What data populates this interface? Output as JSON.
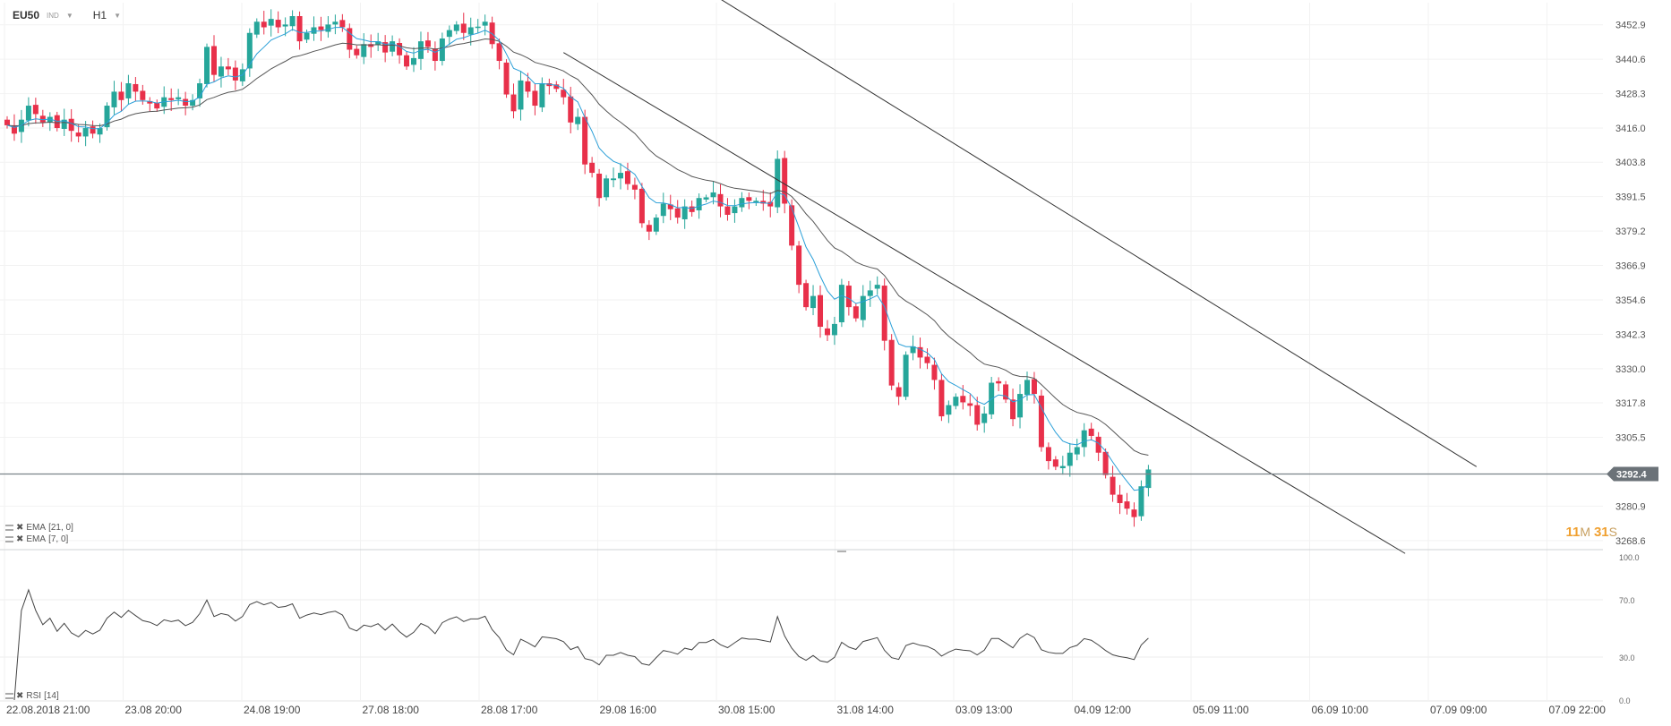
{
  "header": {
    "symbol": "EU50",
    "symbol_sub": "IND",
    "timeframe": "H1"
  },
  "legend": [
    {
      "label": "EMA",
      "params": "[21, 0]"
    },
    {
      "label": "EMA",
      "params": "[7, 0]"
    }
  ],
  "rsi_legend": {
    "label": "RSI",
    "params": "[14]"
  },
  "timer": {
    "minutes": "11",
    "m_unit": "M",
    "seconds": "31",
    "s_unit": "S"
  },
  "colors": {
    "bull": "#26a69a",
    "bear": "#e8304a",
    "ema7": "#2a9fd8",
    "ema21": "#555555",
    "price_tag": "#6b7278"
  },
  "chart_data": {
    "type": "candlestick",
    "price_axis": {
      "ticks": [
        "3452.9",
        "3440.6",
        "3428.3",
        "3416.0",
        "3403.8",
        "3391.5",
        "3379.2",
        "3366.9",
        "3354.6",
        "3342.3",
        "3330.0",
        "3317.8",
        "3305.5",
        "3280.9",
        "3268.6"
      ],
      "ylim": [
        3266,
        3456
      ]
    },
    "current_price": "3292.4",
    "time_axis": [
      "22.08.2018  21:00",
      "23.08  20:00",
      "24.08  19:00",
      "27.08  18:00",
      "28.08  17:00",
      "29.08  16:00",
      "30.08  15:00",
      "31.08  14:00",
      "03.09  13:00",
      "04.09  12:00",
      "05.09  11:00",
      "06.09  10:00",
      "07.09  09:00",
      "07.09  22:00"
    ],
    "closes": [
      3417,
      3414,
      3419,
      3424,
      3421,
      3418,
      3420,
      3416,
      3419,
      3415,
      3413,
      3416,
      3414,
      3416,
      3424,
      3429,
      3426,
      3432,
      3429,
      3426,
      3425,
      3423,
      3427,
      3426,
      3427,
      3424,
      3426,
      3432,
      3445,
      3435,
      3438,
      3437,
      3433,
      3437,
      3450,
      3454,
      3452,
      3455,
      3452,
      3453,
      3456,
      3447,
      3450,
      3452,
      3451,
      3453,
      3454,
      3452,
      3444,
      3442,
      3446,
      3445,
      3447,
      3443,
      3447,
      3442,
      3438,
      3441,
      3447,
      3445,
      3440,
      3448,
      3451,
      3453,
      3450,
      3452,
      3452,
      3454,
      3446,
      3440,
      3428,
      3422,
      3433,
      3429,
      3424,
      3432,
      3431,
      3430,
      3427,
      3418,
      3420,
      3403,
      3400,
      3391,
      3398,
      3398,
      3400,
      3396,
      3394,
      3382,
      3379,
      3384,
      3389,
      3387,
      3384,
      3388,
      3386,
      3391,
      3391,
      3393,
      3388,
      3385,
      3388,
      3391,
      3390,
      3390,
      3389,
      3388,
      3405,
      3389,
      3374,
      3360,
      3352,
      3356,
      3345,
      3342,
      3346,
      3360,
      3352,
      3348,
      3356,
      3358,
      3360,
      3340,
      3324,
      3320,
      3335,
      3338,
      3334,
      3332,
      3326,
      3313,
      3317,
      3320,
      3318,
      3317,
      3310,
      3314,
      3325,
      3325,
      3319,
      3312,
      3321,
      3326,
      3321,
      3302,
      3297,
      3295,
      3295,
      3300,
      3302,
      3308,
      3306,
      3300,
      3292,
      3285,
      3282,
      3280,
      3277,
      3288,
      3294
    ],
    "ema7_name": "EMA [7, 0]",
    "ema21_name": "EMA [21, 0]",
    "upper_channel": {
      "from": {
        "i": 88,
        "price": 3481
      },
      "to": {
        "i": 206,
        "price": 3295
      }
    },
    "lower_channel": {
      "from": {
        "i": 78,
        "price": 3443
      },
      "to": {
        "i": 196,
        "price": 3264
      }
    },
    "rsi": {
      "ticks": [
        "100.0",
        "70.0",
        "30.0",
        "0.0"
      ],
      "ylim": [
        0,
        100
      ]
    }
  }
}
